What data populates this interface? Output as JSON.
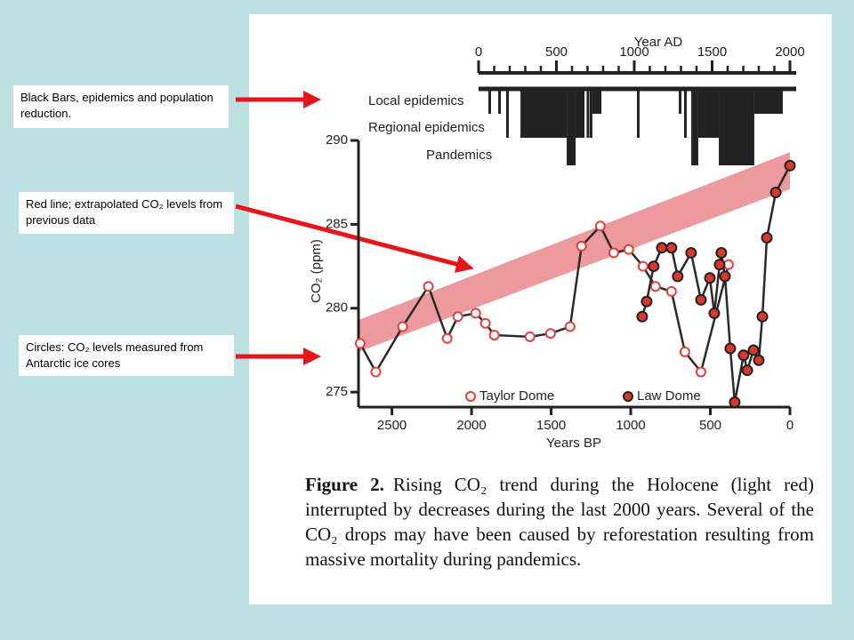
{
  "annotations": [
    "Black Bars, epidemics and population reduction.",
    "Red line; extrapolated CO₂ levels from previous data",
    "Circles: CO₂ levels measured from Antarctic ice cores"
  ],
  "chart_data": {
    "type": "line",
    "xlabel": "Years BP",
    "ylabel": "CO₂ (ppm)",
    "x2label": "Year AD",
    "xlim": [
      2710,
      0
    ],
    "xticks": [
      2500,
      2000,
      1500,
      1000,
      500,
      0
    ],
    "ylim": [
      274,
      290
    ],
    "yticks": [
      290,
      285,
      280,
      275
    ],
    "x2lim": [
      0,
      2000
    ],
    "x2ticks": [
      0,
      500,
      1000,
      1500,
      2000
    ],
    "trend_band": {
      "color": "#ec9a9e",
      "x": [
        2710,
        0
      ],
      "upper": [
        279.3,
        289.3
      ],
      "lower": [
        277.4,
        287.1
      ]
    },
    "epidemics": [
      {
        "name": "Local epidemics",
        "periods": [
          [
            63,
            80
          ],
          [
            126,
            143
          ],
          [
            731,
            789
          ],
          [
            1286,
            1303
          ],
          [
            1771,
            1954
          ]
        ]
      },
      {
        "name": "Regional epidemics",
        "periods": [
          [
            177,
            194
          ],
          [
            269,
            566
          ],
          [
            623,
            680
          ],
          [
            694,
            711
          ],
          [
            714,
            731
          ],
          [
            1017,
            1034
          ],
          [
            1320,
            1337
          ],
          [
            1411,
            1543
          ]
        ]
      },
      {
        "name": "Pandemics",
        "periods": [
          [
            566,
            623
          ],
          [
            1366,
            1411
          ],
          [
            1543,
            1771
          ]
        ]
      }
    ],
    "series": [
      {
        "name": "Taylor Dome",
        "color": "#e0413a",
        "filled": false,
        "x": [
          2700,
          2601,
          2433,
          2271,
          2153,
          2086,
          1974,
          1913,
          1857,
          1633,
          1504,
          1381,
          1309,
          1191,
          1107,
          1012,
          923,
          845,
          744,
          660,
          559,
          386
        ],
        "values": [
          277.9,
          276.2,
          278.9,
          281.3,
          278.2,
          279.5,
          279.7,
          279.1,
          278.4,
          278.3,
          278.5,
          278.9,
          283.7,
          284.9,
          283.3,
          283.5,
          282.5,
          281.3,
          281.0,
          277.4,
          276.2,
          282.6
        ]
      },
      {
        "name": "Law Dome",
        "color": "#d9392b",
        "filled": true,
        "x": [
          928,
          900,
          856,
          805,
          744,
          705,
          621,
          559,
          503,
          475,
          442,
          431,
          408,
          375,
          347,
          291,
          268,
          229,
          196,
          173,
          145,
          89,
          0
        ],
        "values": [
          279.5,
          280.4,
          282.5,
          283.6,
          283.6,
          281.9,
          283.3,
          280.5,
          281.8,
          279.7,
          282.6,
          283.3,
          281.9,
          277.6,
          274.4,
          277.2,
          276.3,
          277.5,
          276.9,
          279.5,
          284.2,
          286.9,
          288.5
        ]
      }
    ],
    "caption_label": "Figure 2.",
    "caption": "Rising CO₂ trend during the Holocene (light red) interrupted by decreases during the last 2000 years. Several of the CO₂ drops may have been caused by reforestation resulting from massive mortality during pandemics."
  }
}
